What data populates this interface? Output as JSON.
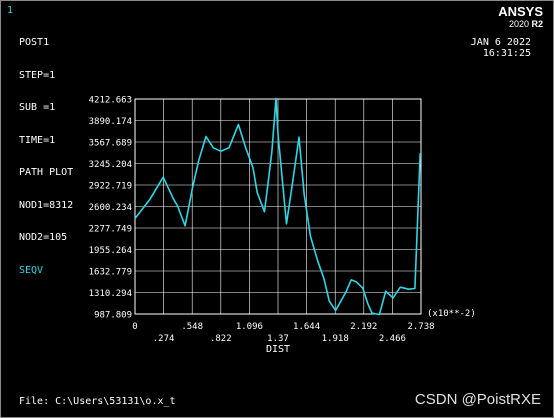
{
  "window_index": "1",
  "info_lines": [
    "POST1",
    "STEP=1",
    "SUB =1",
    "TIME=1",
    "PATH PLOT",
    "NOD1=8312",
    "NOD2=105"
  ],
  "item_label": "SEQV",
  "brand": {
    "name": "ANSYS",
    "version": "2020",
    "release": "R2"
  },
  "date": "JAN  6 2022",
  "time": "16:31:25",
  "file_line": "File: C:\\Users\\53131\\o.x_t",
  "watermark": "CSDN @PoistRXE",
  "colors": {
    "background": "#000000",
    "text": "#ffffff",
    "curve": "#2fd6e6"
  },
  "chart_data": {
    "type": "line",
    "xlabel": "DIST",
    "x_multiplier": "(x10**-2)",
    "xlim": [
      0,
      0.02738
    ],
    "ylim": [
      987.809,
      4212.663
    ],
    "xticks_row1": [
      "0",
      ".548",
      "1.096",
      "1.644",
      "2.192",
      "2.738"
    ],
    "xticks_row2": [
      ".274",
      ".822",
      "1.37",
      "1.918",
      "2.466"
    ],
    "yticks": [
      "4212.663",
      "3890.174",
      "3567.689",
      "3245.204",
      "2922.719",
      "2600.234",
      "2277.749",
      "1955.264",
      "1632.779",
      "1310.294",
      "987.809"
    ],
    "grid": true,
    "series": [
      {
        "x": [
          0,
          0.0014,
          0.0027,
          0.0037,
          0.0041,
          0.0048,
          0.0055,
          0.0061,
          0.0068,
          0.0075,
          0.0082,
          0.009,
          0.0099,
          0.0106,
          0.0113,
          0.0117,
          0.0124,
          0.0131,
          0.0135,
          0.0137,
          0.0145,
          0.0151,
          0.0157,
          0.0162,
          0.0168,
          0.0175,
          0.0181,
          0.0186,
          0.0192,
          0.0196,
          0.0202,
          0.0207,
          0.0212,
          0.0218,
          0.0223,
          0.0227,
          0.0234,
          0.024,
          0.0247,
          0.0254,
          0.0262,
          0.0268,
          0.0273
        ],
        "y": [
          2420,
          2700,
          3040,
          2710,
          2600,
          2310,
          2880,
          3290,
          3650,
          3480,
          3430,
          3480,
          3830,
          3480,
          3180,
          2810,
          2520,
          3410,
          4220,
          3670,
          2340,
          2970,
          3640,
          2780,
          2150,
          1780,
          1510,
          1180,
          1040,
          1150,
          1320,
          1500,
          1470,
          1380,
          1140,
          1000,
          980,
          1330,
          1230,
          1390,
          1360,
          1370,
          3400
        ]
      }
    ]
  }
}
